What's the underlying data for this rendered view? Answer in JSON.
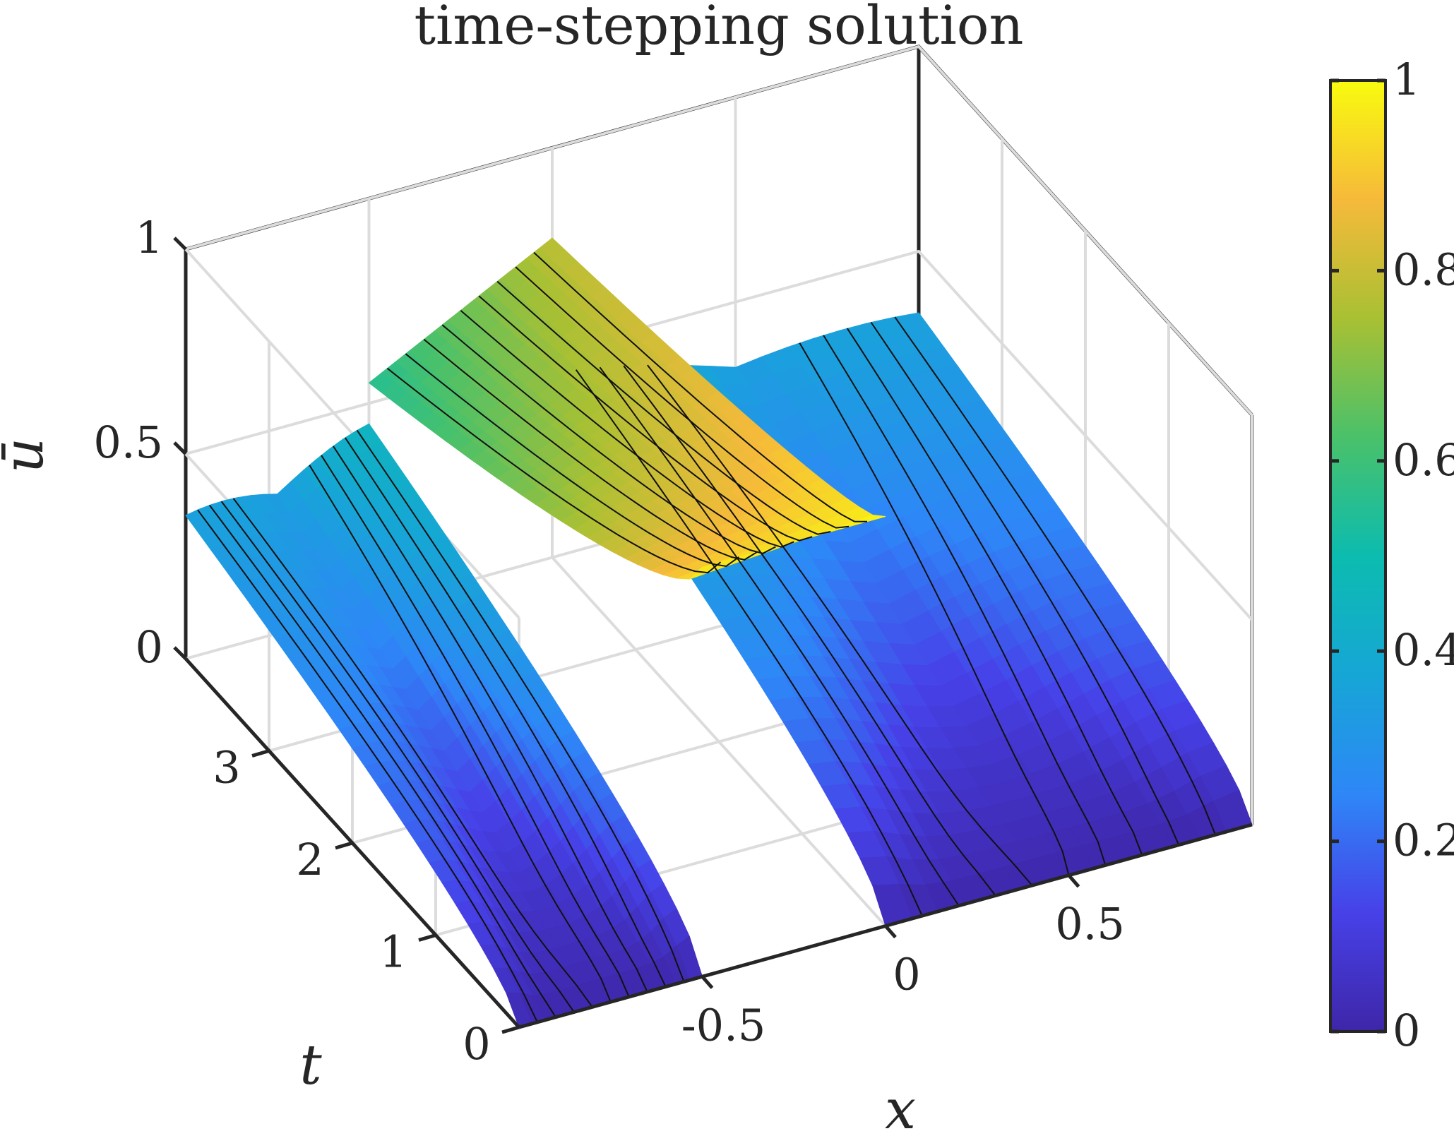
{
  "chart_data": {
    "type": "surface",
    "title": "time-stepping solution",
    "xlabel": "x",
    "ylabel": "t",
    "zlabel": "ū",
    "xlim": [
      -1,
      1
    ],
    "ylim": [
      0,
      4
    ],
    "zlim": [
      0,
      1
    ],
    "x_ticks": [
      -0.5,
      0,
      0.5
    ],
    "x_tick_labels": [
      "-0.5",
      "0",
      "0.5"
    ],
    "y_ticks": [
      0,
      1,
      2,
      3
    ],
    "y_tick_labels": [
      "0",
      "1",
      "2",
      "3"
    ],
    "z_ticks": [
      0,
      0.5,
      1
    ],
    "z_tick_labels": [
      "0",
      "0.5",
      "1"
    ],
    "grid": true,
    "colormap": "parula",
    "colorbar": {
      "range": [
        0,
        1
      ],
      "ticks": [
        0,
        0.2,
        0.4,
        0.6,
        0.8,
        1
      ],
      "tick_labels": [
        "0",
        "0.2",
        "0.4",
        "0.6",
        "0.8",
        "1"
      ]
    },
    "surface": {
      "discontinuities_x": [
        -0.5,
        0
      ],
      "regions": [
        {
          "x": [
            -1,
            -0.5
          ],
          "u_t0": 0,
          "u_tmax_left_edge": 0.35,
          "u_tmax_right_edge": 0.45
        },
        {
          "x": [
            -0.5,
            0
          ],
          "u_t0": 1,
          "u_tmax_left_edge": 0.55,
          "u_tmax_right_edge": 0.78
        },
        {
          "x": [
            0,
            1
          ],
          "u_t0": 0,
          "u_tmax_left_edge": 0.45,
          "u_tmax_right_edge": 0.35
        }
      ]
    },
    "contour_levels": 40
  }
}
